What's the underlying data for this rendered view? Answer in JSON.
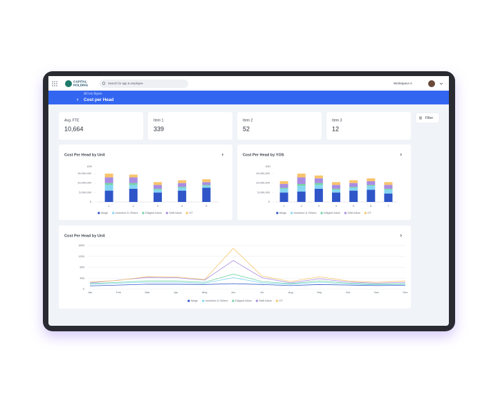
{
  "header": {
    "brand": [
      "CAPITAL",
      "HOLDING"
    ],
    "search_placeholder": "Search for app & employee",
    "workspace": "Workspace A"
  },
  "page_header": {
    "breadcrumb": "@Core Bigure",
    "title": "Cost per Head"
  },
  "filter_button": "Filter",
  "kpis": [
    {
      "label": "Avg. FTE",
      "value": "10,664"
    },
    {
      "label": "Item 1",
      "value": "339"
    },
    {
      "label": "Item 2",
      "value": "52"
    },
    {
      "label": "Item 3",
      "value": "12"
    }
  ],
  "chart_data": [
    {
      "type": "stacked_bar",
      "title": "Cost Per Head by Unit",
      "y_label": "IDR",
      "categories": [
        "1",
        "2",
        "3",
        "4",
        "5"
      ],
      "series": [
        {
          "name": "Wage",
          "color": "#2f55c8",
          "values": [
            6000000,
            7000000,
            5000000,
            6000000,
            7500000
          ]
        },
        {
          "name": "Incentive & Others",
          "color": "#86d6f2",
          "values": [
            3000000,
            2000000,
            1500000,
            1500000,
            1000000
          ]
        },
        {
          "name": "Diligent Allow",
          "color": "#72d4a4",
          "values": [
            1000000,
            1000000,
            500000,
            500000,
            500000
          ]
        },
        {
          "name": "Shift Allow",
          "color": "#a98ce2",
          "values": [
            3000000,
            3000000,
            2000000,
            2000000,
            1500000
          ]
        },
        {
          "name": "OT",
          "color": "#f7c46c",
          "values": [
            2000000,
            1500000,
            1500000,
            1500000,
            1500000
          ]
        }
      ],
      "ylim": [
        0,
        15000000
      ],
      "yticks": [
        0,
        {
          "value": 5000000,
          "label": "5,000,000"
        },
        {
          "value": 10000000,
          "label": "10,000,000"
        },
        {
          "value": 15000000,
          "label": "15,000,000"
        }
      ],
      "grid": false
    },
    {
      "type": "stacked_bar",
      "title": "Cost Per Head by YOS",
      "y_label": "IDR",
      "categories": [
        "1",
        "2",
        "3",
        "4",
        "5",
        "6",
        "7"
      ],
      "series": [
        {
          "name": "Wage",
          "color": "#2f55c8",
          "values": [
            5000000,
            5500000,
            7000000,
            5000000,
            6000000,
            6500000,
            4500000
          ]
        },
        {
          "name": "Incentive & Others",
          "color": "#86d6f2",
          "values": [
            2000000,
            3000000,
            2000000,
            1500000,
            1500000,
            2000000,
            2000000
          ]
        },
        {
          "name": "Diligent Allow",
          "color": "#72d4a4",
          "values": [
            500000,
            1000000,
            1000000,
            500000,
            500000,
            500000,
            500000
          ]
        },
        {
          "name": "Shift Allow",
          "color": "#a98ce2",
          "values": [
            2000000,
            3500000,
            2500000,
            2000000,
            2000000,
            2000000,
            2000000
          ]
        },
        {
          "name": "OT",
          "color": "#f7c46c",
          "values": [
            1500000,
            2000000,
            1500000,
            1500000,
            1500000,
            1500000,
            1500000
          ]
        }
      ],
      "ylim": [
        0,
        15000000
      ],
      "yticks": [
        0,
        {
          "value": 5000000,
          "label": "5,000,000"
        },
        {
          "value": 10000000,
          "label": "10,000,000"
        },
        {
          "value": 15000000,
          "label": "15,000,000"
        }
      ],
      "grid": false
    },
    {
      "type": "line",
      "title": "Cost Per Head by Unit",
      "categories": [
        "Jan",
        "Feb",
        "Mar",
        "Apr",
        "May",
        "Jun",
        "Jul",
        "Aug",
        "Sep",
        "Oct",
        "Nov",
        "Dec"
      ],
      "series": [
        {
          "name": "Wage",
          "color": "#2f55c8",
          "values": [
            120,
            150,
            180,
            180,
            170,
            200,
            170,
            130,
            170,
            150,
            130,
            140
          ]
        },
        {
          "name": "Incentive & Others",
          "color": "#86d6f2",
          "values": [
            180,
            220,
            250,
            250,
            220,
            420,
            230,
            180,
            250,
            190,
            160,
            180
          ]
        },
        {
          "name": "Diligent Allow",
          "color": "#72d4a4",
          "values": [
            200,
            250,
            300,
            300,
            250,
            550,
            280,
            200,
            300,
            220,
            180,
            200
          ]
        },
        {
          "name": "Shift Allow",
          "color": "#a98ce2",
          "values": [
            230,
            330,
            430,
            420,
            330,
            1050,
            420,
            230,
            380,
            260,
            220,
            250
          ]
        },
        {
          "name": "OT",
          "color": "#f7c46c",
          "values": [
            260,
            320,
            460,
            450,
            350,
            1500,
            480,
            280,
            450,
            300,
            250,
            300
          ]
        }
      ],
      "ylim": [
        0,
        1600
      ],
      "yticks": [
        0,
        400,
        800,
        1200,
        1600
      ],
      "grid": true
    }
  ]
}
